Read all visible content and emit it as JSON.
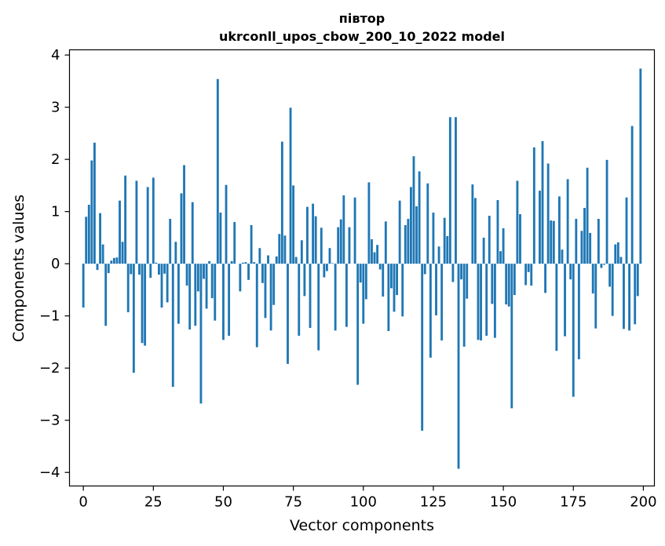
{
  "chart_data": {
    "type": "bar",
    "title_line1": "півтор",
    "title_line2": "ukrconll_upos_cbow_200_10_2022 model",
    "xlabel": "Vector components",
    "ylabel": "Components values",
    "xlim": [
      -4.95,
      203.95
    ],
    "ylim": [
      -4.26,
      4.1
    ],
    "xticks": [
      0,
      25,
      50,
      75,
      100,
      125,
      150,
      175,
      200
    ],
    "xtick_labels": [
      "0",
      "25",
      "50",
      "75",
      "100",
      "125",
      "150",
      "175",
      "200"
    ],
    "yticks": [
      4,
      3,
      2,
      1,
      0,
      -1,
      -2,
      -3,
      -4
    ],
    "ytick_labels": [
      "4",
      "3",
      "2",
      "1",
      "0",
      "−1",
      "−2",
      "−3",
      "−4"
    ],
    "bar_color": "#1f77b4",
    "grid": false,
    "legend": "none",
    "values": [
      -0.84,
      0.9,
      1.13,
      1.98,
      2.32,
      -0.12,
      0.97,
      0.37,
      -1.19,
      -0.18,
      0.06,
      0.11,
      0.12,
      1.21,
      0.42,
      1.69,
      -0.93,
      -0.2,
      -2.09,
      1.59,
      -0.21,
      -1.52,
      -1.57,
      1.47,
      -0.27,
      1.65,
      0.02,
      -0.21,
      -0.84,
      -0.19,
      -0.74,
      0.86,
      -2.36,
      0.42,
      -1.15,
      1.35,
      1.89,
      -0.42,
      -1.26,
      1.18,
      -1.19,
      -0.53,
      -2.68,
      -0.29,
      -0.86,
      0.05,
      -0.66,
      -1.09,
      3.54,
      0.98,
      -1.46,
      1.51,
      -1.38,
      0.05,
      0.8,
      0.0,
      -0.53,
      0.02,
      0.03,
      -0.31,
      0.74,
      0.03,
      -1.6,
      0.3,
      -0.37,
      -1.04,
      0.16,
      -1.28,
      -0.79,
      0.14,
      0.57,
      2.34,
      0.54,
      -1.92,
      2.99,
      1.5,
      0.13,
      -1.38,
      0.45,
      -0.62,
      1.09,
      -1.23,
      1.15,
      0.91,
      -1.66,
      0.69,
      -0.26,
      -0.14,
      0.3,
      0.01,
      -1.28,
      0.7,
      0.85,
      1.31,
      -1.21,
      0.7,
      0.0,
      1.27,
      -2.32,
      -0.36,
      -1.15,
      -0.68,
      1.56,
      0.47,
      0.22,
      0.36,
      -0.11,
      -0.63,
      0.81,
      -1.29,
      -0.47,
      -0.92,
      -0.6,
      1.21,
      -1.01,
      0.74,
      0.86,
      1.47,
      2.06,
      1.1,
      1.77,
      -3.2,
      -0.2,
      1.54,
      -1.8,
      0.98,
      -0.99,
      0.33,
      -1.47,
      0.88,
      0.53,
      2.81,
      -0.35,
      2.81,
      -3.93,
      -0.3,
      -1.59,
      -0.67,
      0.0,
      1.52,
      1.26,
      -1.46,
      -1.47,
      0.5,
      -1.38,
      0.92,
      -0.77,
      -1.42,
      1.22,
      0.24,
      0.68,
      -0.78,
      -0.82,
      -2.77,
      -0.6,
      1.59,
      0.95,
      0.0,
      -0.41,
      -0.16,
      -0.42,
      2.23,
      0.0,
      1.4,
      2.35,
      -0.56,
      1.92,
      0.83,
      0.82,
      -1.67,
      1.29,
      0.27,
      -1.39,
      1.62,
      -0.3,
      -2.55,
      0.86,
      -1.83,
      0.63,
      1.07,
      1.84,
      0.59,
      -0.57,
      -1.24,
      0.86,
      -0.08,
      -0.02,
      1.99,
      -0.44,
      -1.0,
      0.37,
      0.41,
      0.13,
      -1.25,
      1.27,
      -1.28,
      2.64,
      -1.16,
      -0.62,
      3.74
    ]
  }
}
